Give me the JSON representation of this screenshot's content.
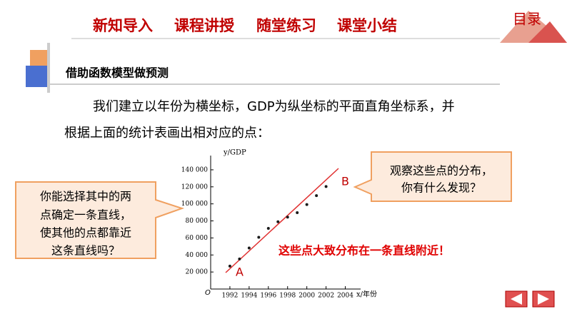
{
  "nav": {
    "items": [
      "新知导入",
      "课程讲授",
      "随堂练习",
      "课堂小结"
    ],
    "menu": "目录"
  },
  "section_title": "借助函数模型做预测",
  "paragraph": [
    "我们建立以年份为横坐标，GDP为纵坐标的平面直角坐标系，并",
    "根据上面的统计表画出相对应的点："
  ],
  "callout_left": [
    "你能选择其中的两",
    "点确定一条直线，",
    "使其他的点都靠近",
    "这条直线吗？"
  ],
  "callout_right": [
    "观察这些点的分布，",
    "你有什么发现？"
  ],
  "conclusion": "这些点大致分布在一条直线附近！",
  "chart_data": {
    "type": "scatter",
    "y_label": "y/GDP",
    "x_label": "x/年份",
    "origin_label": "O",
    "x": [
      1992,
      1993,
      1994,
      1995,
      1996,
      1997,
      1998,
      1999,
      2000,
      2001,
      2002
    ],
    "values": [
      26923,
      35334,
      48198,
      60794,
      71177,
      78973,
      84402,
      89677,
      99215,
      109655,
      120333
    ],
    "color": "#1a1a1a",
    "xlim": [
      1990,
      2005
    ],
    "ylim": [
      0,
      150000
    ],
    "xticks": [
      1992,
      1994,
      1996,
      1998,
      2000,
      2002,
      2004
    ],
    "yticks": [
      {
        "value": 20000,
        "label": "20 000"
      },
      {
        "value": 40000,
        "label": "40 000"
      },
      {
        "value": 60000,
        "label": "60 000"
      },
      {
        "value": 80000,
        "label": "80 000"
      },
      {
        "value": 100000,
        "label": "100 000"
      },
      {
        "value": 120000,
        "label": "120 000"
      },
      {
        "value": 140000,
        "label": "140 000"
      }
    ],
    "annotations": [
      "A",
      "B"
    ]
  }
}
